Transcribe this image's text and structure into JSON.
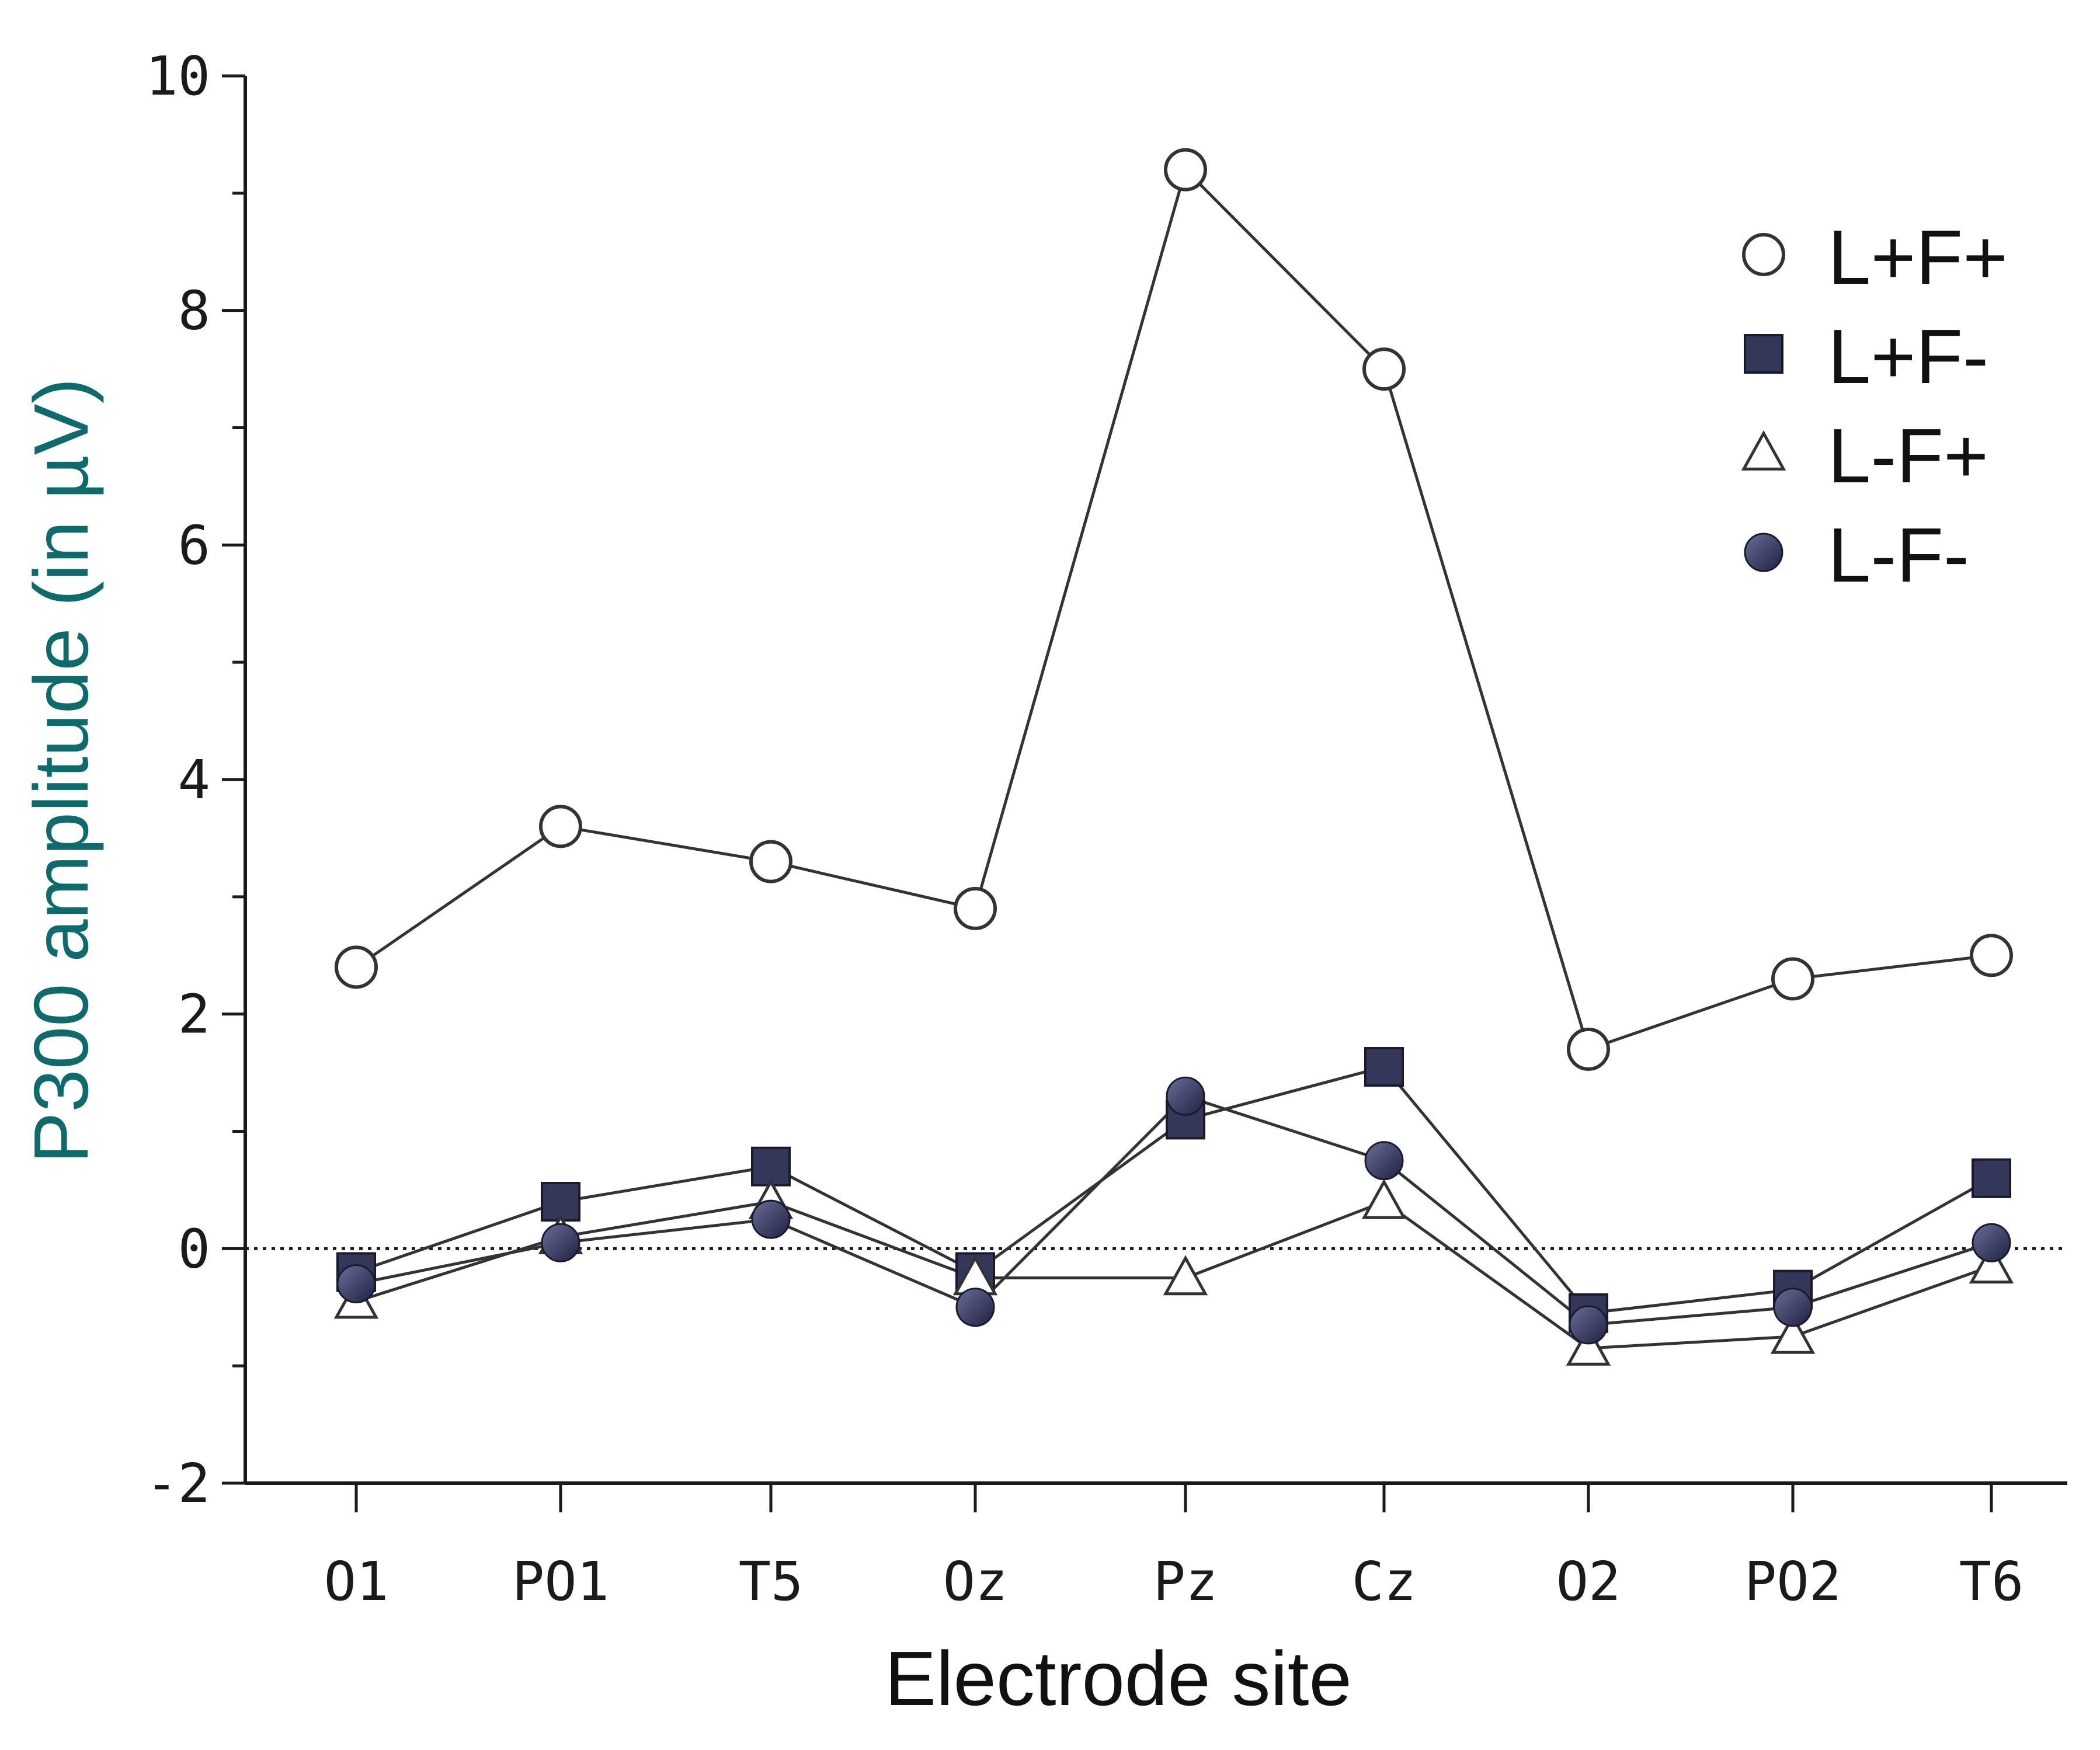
{
  "chart_data": {
    "type": "line",
    "title": "",
    "xlabel": "Electrode site",
    "ylabel": "P300 amplitude (in µV)",
    "categories": [
      "O1",
      "PO1",
      "T5",
      "Oz",
      "Pz",
      "Cz",
      "O2",
      "PO2",
      "T6"
    ],
    "ylim": [
      -2,
      10
    ],
    "yticks": [
      -2,
      0,
      2,
      4,
      6,
      8,
      10
    ],
    "ytick_labels": [
      "-2",
      "0",
      "2",
      "4",
      "6",
      "8",
      "10"
    ],
    "zero_reference_line": true,
    "grid": false,
    "legend_position": "top-right",
    "series": [
      {
        "name": "L+F+",
        "marker": "open-circle",
        "values": [
          2.4,
          3.6,
          3.3,
          2.9,
          9.2,
          7.5,
          1.7,
          2.3,
          2.5
        ]
      },
      {
        "name": "L+F-",
        "marker": "filled-square",
        "values": [
          -0.2,
          0.4,
          0.7,
          -0.2,
          1.1,
          1.55,
          -0.55,
          -0.35,
          0.6
        ]
      },
      {
        "name": "L-F+",
        "marker": "open-triangle",
        "values": [
          -0.45,
          0.1,
          0.4,
          -0.25,
          -0.25,
          0.4,
          -0.85,
          -0.75,
          -0.15
        ]
      },
      {
        "name": "L-F-",
        "marker": "filled-circle",
        "values": [
          -0.3,
          0.05,
          0.25,
          -0.5,
          1.3,
          0.75,
          -0.65,
          -0.5,
          0.05
        ]
      }
    ]
  },
  "colors": {
    "axis": "#1a1a1a",
    "line": "#333333",
    "filled_marker": "#34375a",
    "ylabel": "#0f6b6b",
    "xlabel": "#111111"
  }
}
